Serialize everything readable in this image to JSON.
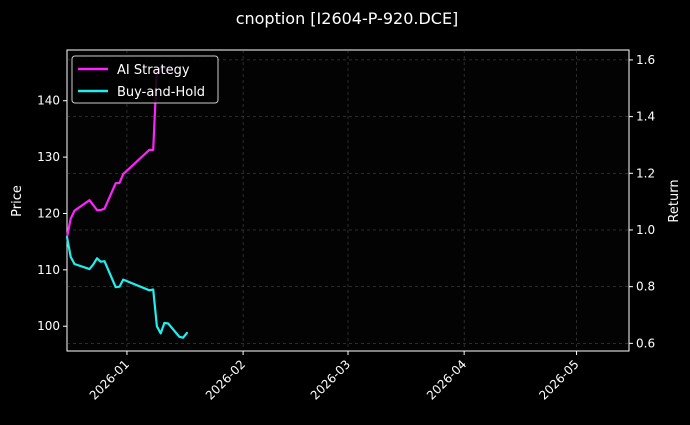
{
  "chart_data": {
    "type": "line",
    "title": "cnoption [I2604-P-920.DCE]",
    "xlabel": "",
    "ylabel": "Price",
    "y2label": "Return",
    "xlim": [
      "2025-12-16",
      "2026-05-15"
    ],
    "ylim": [
      95.6,
      149.0
    ],
    "y2lim": [
      0.573,
      1.635
    ],
    "x_ticks": [
      "2026-01",
      "2026-02",
      "2026-03",
      "2026-04",
      "2026-05"
    ],
    "y_ticks": [
      100,
      110,
      120,
      130,
      140
    ],
    "y2_ticks": [
      0.6,
      0.8,
      1.0,
      1.2,
      1.4,
      1.6
    ],
    "grid": true,
    "legend_position": "top-left",
    "series": [
      {
        "name": "AI Strategy",
        "axis": "right",
        "color": "#ff22ff",
        "x": [
          "2025-12-16",
          "2025-12-17",
          "2025-12-18",
          "2025-12-22",
          "2025-12-24",
          "2025-12-25",
          "2025-12-26",
          "2025-12-29",
          "2025-12-30",
          "2025-12-31",
          "2026-01-07",
          "2026-01-08",
          "2026-01-09",
          "2026-01-12"
        ],
        "values": [
          0.975,
          1.04,
          1.068,
          1.105,
          1.07,
          1.07,
          1.075,
          1.165,
          1.166,
          1.197,
          1.283,
          1.282,
          1.57,
          1.57
        ]
      },
      {
        "name": "Buy-and-Hold",
        "axis": "right",
        "color": "#22eeee",
        "x": [
          "2025-12-16",
          "2025-12-17",
          "2025-12-18",
          "2025-12-22",
          "2025-12-23",
          "2025-12-24",
          "2025-12-25",
          "2025-12-26",
          "2025-12-29",
          "2025-12-30",
          "2025-12-31",
          "2026-01-07",
          "2026-01-08",
          "2026-01-09",
          "2026-01-10",
          "2026-01-11",
          "2026-01-12",
          "2026-01-15",
          "2026-01-16",
          "2026-01-17"
        ],
        "values": [
          0.975,
          0.905,
          0.88,
          0.862,
          0.878,
          0.9,
          0.888,
          0.89,
          0.798,
          0.8,
          0.825,
          0.787,
          0.79,
          0.66,
          0.635,
          0.672,
          0.67,
          0.623,
          0.62,
          0.637
        ]
      }
    ]
  }
}
